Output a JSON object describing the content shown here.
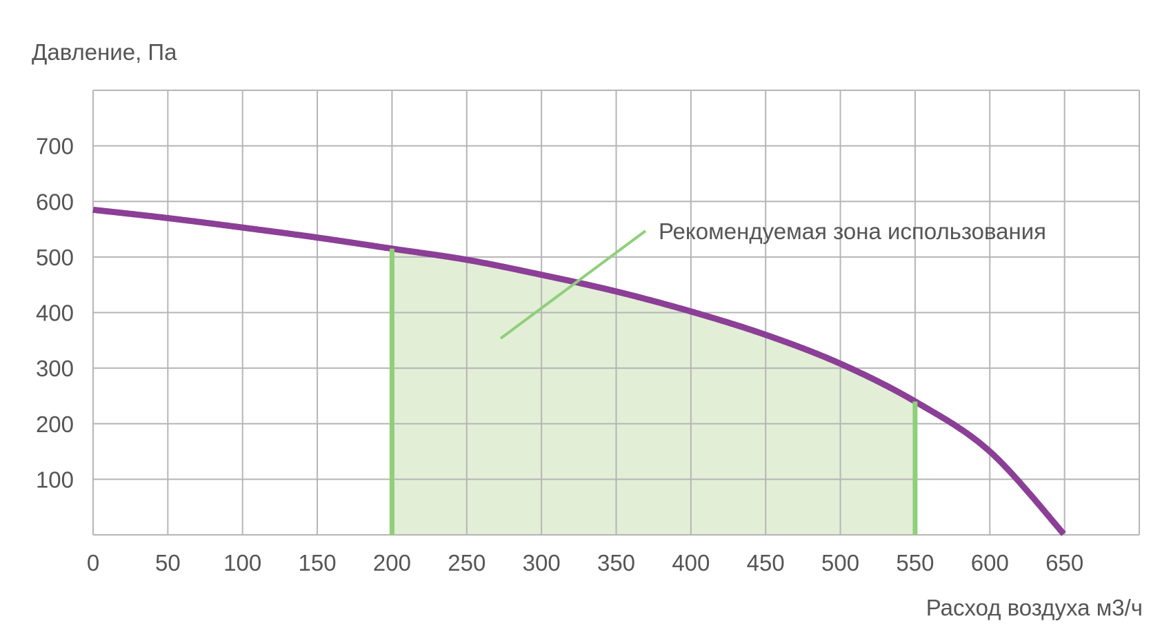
{
  "chart_data": {
    "type": "line",
    "ylabel": "Давление, Па",
    "xlabel": "Расход воздуха м3/ч",
    "xlim": [
      0,
      700
    ],
    "ylim": [
      0,
      800
    ],
    "x_ticks": [
      "0",
      "50",
      "100",
      "150",
      "200",
      "250",
      "300",
      "350",
      "400",
      "450",
      "500",
      "550",
      "600",
      "650"
    ],
    "y_ticks": [
      "100",
      "200",
      "300",
      "400",
      "500",
      "600",
      "700"
    ],
    "grid": true,
    "series": [
      {
        "x": [
          0,
          50,
          100,
          150,
          200,
          250,
          300,
          350,
          400,
          450,
          500,
          550,
          600,
          650
        ],
        "y": [
          585,
          570,
          553,
          535,
          515,
          495,
          468,
          438,
          402,
          360,
          308,
          240,
          150,
          0
        ],
        "color": "#8B3F96"
      }
    ],
    "recommended_zone": {
      "x_from": 200,
      "x_to": 550,
      "label": "Рекомендуемая зона использования",
      "line_color": "#8FCF7A",
      "fill_color": "#E2EED6"
    },
    "grid_color": "#B5B5B5"
  }
}
